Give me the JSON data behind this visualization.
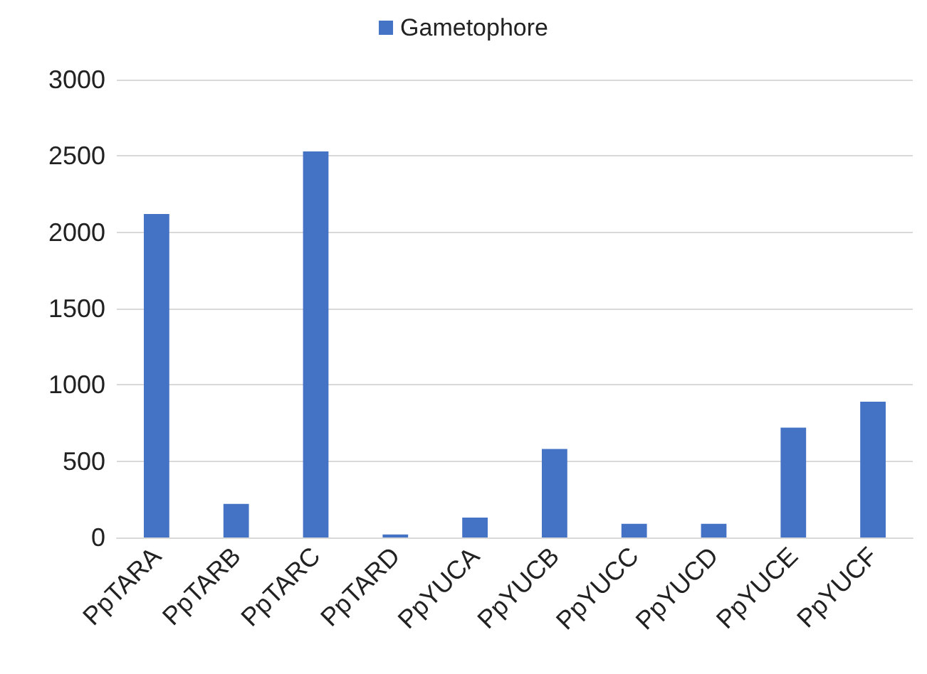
{
  "chart_data": {
    "type": "bar",
    "categories": [
      "PpTARA",
      "PpTARB",
      "PpTARC",
      "PpTARD",
      "PpYUCA",
      "PpYUCB",
      "PpYUCC",
      "PpYUCD",
      "PpYUCE",
      "PpYUCF"
    ],
    "series": [
      {
        "name": "Gametophore",
        "color": "#4472c4",
        "values": [
          2120,
          220,
          2530,
          20,
          130,
          580,
          90,
          90,
          720,
          890
        ]
      }
    ],
    "ylim": [
      0,
      3000
    ],
    "yticks": [
      0,
      500,
      1000,
      1500,
      2000,
      2500,
      3000
    ],
    "grid": "y",
    "legend": "top"
  }
}
